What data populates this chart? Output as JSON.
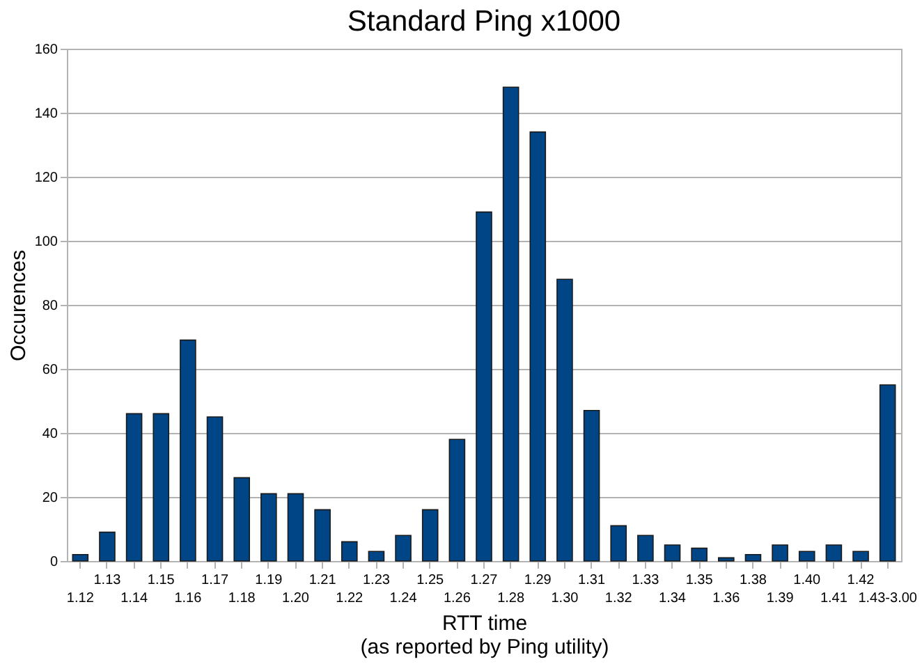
{
  "chart_data": {
    "type": "bar",
    "title": "Standard Ping x1000",
    "xlabel": "RTT time",
    "ylabel": "Occurences",
    "annotations": [
      "(as reported by Ping utility)"
    ],
    "categories": [
      "1.12",
      "1.13",
      "1.14",
      "1.15",
      "1.16",
      "1.17",
      "1.18",
      "1.19",
      "1.20",
      "1.21",
      "1.22",
      "1.23",
      "1.24",
      "1.25",
      "1.26",
      "1.27",
      "1.28",
      "1.29",
      "1.30",
      "1.31",
      "1.32",
      "1.33",
      "1.34",
      "1.35",
      "1.36",
      "1.38",
      "1.39",
      "1.40",
      "1.41",
      "1.42",
      "1.43-3.00"
    ],
    "values": [
      2,
      9,
      46,
      46,
      69,
      45,
      26,
      21,
      21,
      16,
      6,
      3,
      8,
      16,
      38,
      109,
      148,
      134,
      88,
      47,
      11,
      8,
      5,
      4,
      1,
      2,
      5,
      3,
      5,
      3,
      55
    ],
    "color": "#004586",
    "ylim": [
      0,
      160
    ],
    "yticks": [
      0,
      20,
      40,
      60,
      80,
      100,
      120,
      140,
      160
    ],
    "grid": "y"
  }
}
